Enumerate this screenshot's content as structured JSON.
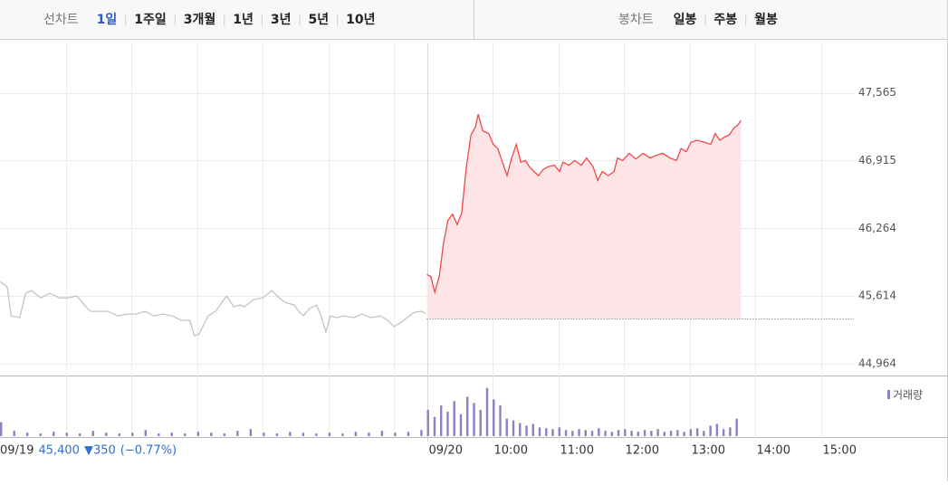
{
  "toolbar": {
    "line_label": "선차트",
    "line_periods": [
      "1일",
      "1주일",
      "3개월",
      "1년",
      "3년",
      "5년",
      "10년"
    ],
    "active_period": 0,
    "candle_label": "봉차트",
    "candle_periods": [
      "일봉",
      "주봉",
      "월봉"
    ]
  },
  "previous_day": {
    "date": "09/19",
    "close": {
      "value": 45400,
      "label": "45,400"
    },
    "change": "▼350",
    "rate": "(−0.77%)"
  },
  "chart_data": [
    {
      "type": "line",
      "xlim": [
        2.5,
        15.5
      ],
      "ylim": [
        44850,
        48040
      ],
      "xticks": [
        {
          "value": 9,
          "label": "09/20"
        },
        {
          "value": 10,
          "label": "10:00"
        },
        {
          "value": 11,
          "label": "11:00"
        },
        {
          "value": 12,
          "label": "12:00"
        },
        {
          "value": 13,
          "label": "13:00"
        },
        {
          "value": 14,
          "label": "14:00"
        },
        {
          "value": 15,
          "label": "15:00"
        }
      ],
      "xgrid": [
        3.5,
        4.5,
        5.5,
        6.5,
        7.5,
        8.5
      ],
      "yticks": [
        {
          "value": 47565,
          "label": "47,565"
        },
        {
          "value": 46915,
          "label": "46,915"
        },
        {
          "value": 46264,
          "label": "46,264"
        },
        {
          "value": 45614,
          "label": "45,614"
        },
        {
          "value": 44964,
          "label": "44,964"
        }
      ],
      "grid": true,
      "series": [
        {
          "color": "#c4c4c4",
          "x": [
            2.5,
            2.61,
            2.67,
            2.8,
            2.89,
            2.98,
            3.12,
            3.26,
            3.4,
            3.53,
            3.67,
            3.81,
            3.88,
            4.02,
            4.15,
            4.29,
            4.43,
            4.57,
            4.71,
            4.84,
            4.98,
            5.12,
            5.26,
            5.39,
            5.46,
            5.53,
            5.67,
            5.78,
            5.88,
            5.95,
            6.06,
            6.15,
            6.22,
            6.36,
            6.5,
            6.64,
            6.75,
            6.84,
            6.98,
            7.05,
            7.12,
            7.21,
            7.32,
            7.39,
            7.46,
            7.53,
            7.63,
            7.74,
            7.88,
            8.01,
            8.15,
            8.29,
            8.4,
            8.5,
            8.59,
            8.7,
            8.81,
            8.91,
            8.98
          ],
          "values": [
            45752,
            45700,
            45423,
            45406,
            45640,
            45666,
            45596,
            45640,
            45596,
            45596,
            45614,
            45510,
            45466,
            45466,
            45466,
            45423,
            45440,
            45440,
            45466,
            45423,
            45440,
            45423,
            45380,
            45380,
            45232,
            45249,
            45423,
            45466,
            45553,
            45614,
            45510,
            45527,
            45510,
            45579,
            45596,
            45666,
            45596,
            45553,
            45527,
            45466,
            45423,
            45492,
            45527,
            45423,
            45267,
            45423,
            45406,
            45423,
            45406,
            45440,
            45406,
            45423,
            45380,
            45319,
            45353,
            45406,
            45458,
            45466,
            45449
          ]
        },
        {
          "color": "#f04848",
          "fill": "#fde4e6",
          "x": [
            9.0,
            9.06,
            9.12,
            9.19,
            9.25,
            9.32,
            9.39,
            9.46,
            9.53,
            9.6,
            9.67,
            9.74,
            9.78,
            9.85,
            9.94,
            10.01,
            10.08,
            10.15,
            10.22,
            10.29,
            10.36,
            10.43,
            10.5,
            10.56,
            10.63,
            10.7,
            10.77,
            10.84,
            10.94,
            11.02,
            11.07,
            11.16,
            11.25,
            11.35,
            11.43,
            11.53,
            11.6,
            11.67,
            11.76,
            11.85,
            11.9,
            11.98,
            12.08,
            12.18,
            12.29,
            12.4,
            12.49,
            12.59,
            12.7,
            12.8,
            12.87,
            12.95,
            13.02,
            13.11,
            13.23,
            13.32,
            13.39,
            13.46,
            13.53,
            13.6,
            13.67,
            13.74,
            13.78
          ],
          "values": [
            45820,
            45800,
            45650,
            45810,
            46110,
            46340,
            46400,
            46300,
            46410,
            46850,
            47160,
            47240,
            47360,
            47200,
            47175,
            47070,
            47030,
            46900,
            46770,
            46940,
            47070,
            46900,
            46915,
            46855,
            46810,
            46770,
            46830,
            46855,
            46870,
            46810,
            46900,
            46870,
            46915,
            46870,
            46940,
            46855,
            46725,
            46810,
            46770,
            46810,
            46940,
            46915,
            46985,
            46930,
            46985,
            46940,
            46965,
            46985,
            46940,
            46915,
            47030,
            47000,
            47090,
            47110,
            47090,
            47070,
            47175,
            47110,
            47140,
            47160,
            47225,
            47260,
            47300
          ]
        }
      ]
    },
    {
      "type": "bar",
      "xlim": [
        2.5,
        15.5
      ],
      "ylim": [
        0,
        60
      ],
      "series": [
        {
          "name": "거래량",
          "color": "#8f7fc4",
          "x": [
            2.5,
            2.7,
            2.9,
            3.1,
            3.3,
            3.5,
            3.7,
            3.9,
            4.1,
            4.3,
            4.5,
            4.7,
            4.9,
            5.1,
            5.3,
            5.5,
            5.7,
            5.9,
            6.1,
            6.3,
            6.5,
            6.7,
            6.9,
            7.1,
            7.3,
            7.5,
            7.7,
            7.9,
            8.1,
            8.3,
            8.5,
            8.7,
            8.9,
            9.0,
            9.1,
            9.2,
            9.3,
            9.4,
            9.5,
            9.6,
            9.7,
            9.8,
            9.9,
            10.0,
            10.1,
            10.2,
            10.3,
            10.4,
            10.5,
            10.6,
            10.7,
            10.8,
            10.9,
            11.0,
            11.1,
            11.2,
            11.3,
            11.4,
            11.5,
            11.6,
            11.7,
            11.8,
            11.9,
            12.0,
            12.1,
            12.2,
            12.3,
            12.4,
            12.5,
            12.6,
            12.7,
            12.8,
            12.9,
            13.0,
            13.1,
            13.2,
            13.3,
            13.4,
            13.5,
            13.6,
            13.7
          ],
          "values": [
            16,
            6,
            4,
            3,
            5,
            4,
            3,
            6,
            4,
            3,
            4,
            7,
            3,
            4,
            3,
            5,
            4,
            3,
            6,
            8,
            4,
            3,
            5,
            4,
            3,
            4,
            3,
            5,
            4,
            6,
            4,
            5,
            7,
            30,
            22,
            35,
            28,
            40,
            25,
            45,
            38,
            30,
            55,
            42,
            35,
            20,
            18,
            15,
            12,
            14,
            10,
            9,
            8,
            10,
            7,
            6,
            8,
            7,
            6,
            9,
            6,
            5,
            7,
            8,
            6,
            5,
            7,
            6,
            8,
            5,
            6,
            7,
            5,
            8,
            9,
            6,
            12,
            14,
            8,
            10,
            20
          ]
        }
      ]
    }
  ]
}
